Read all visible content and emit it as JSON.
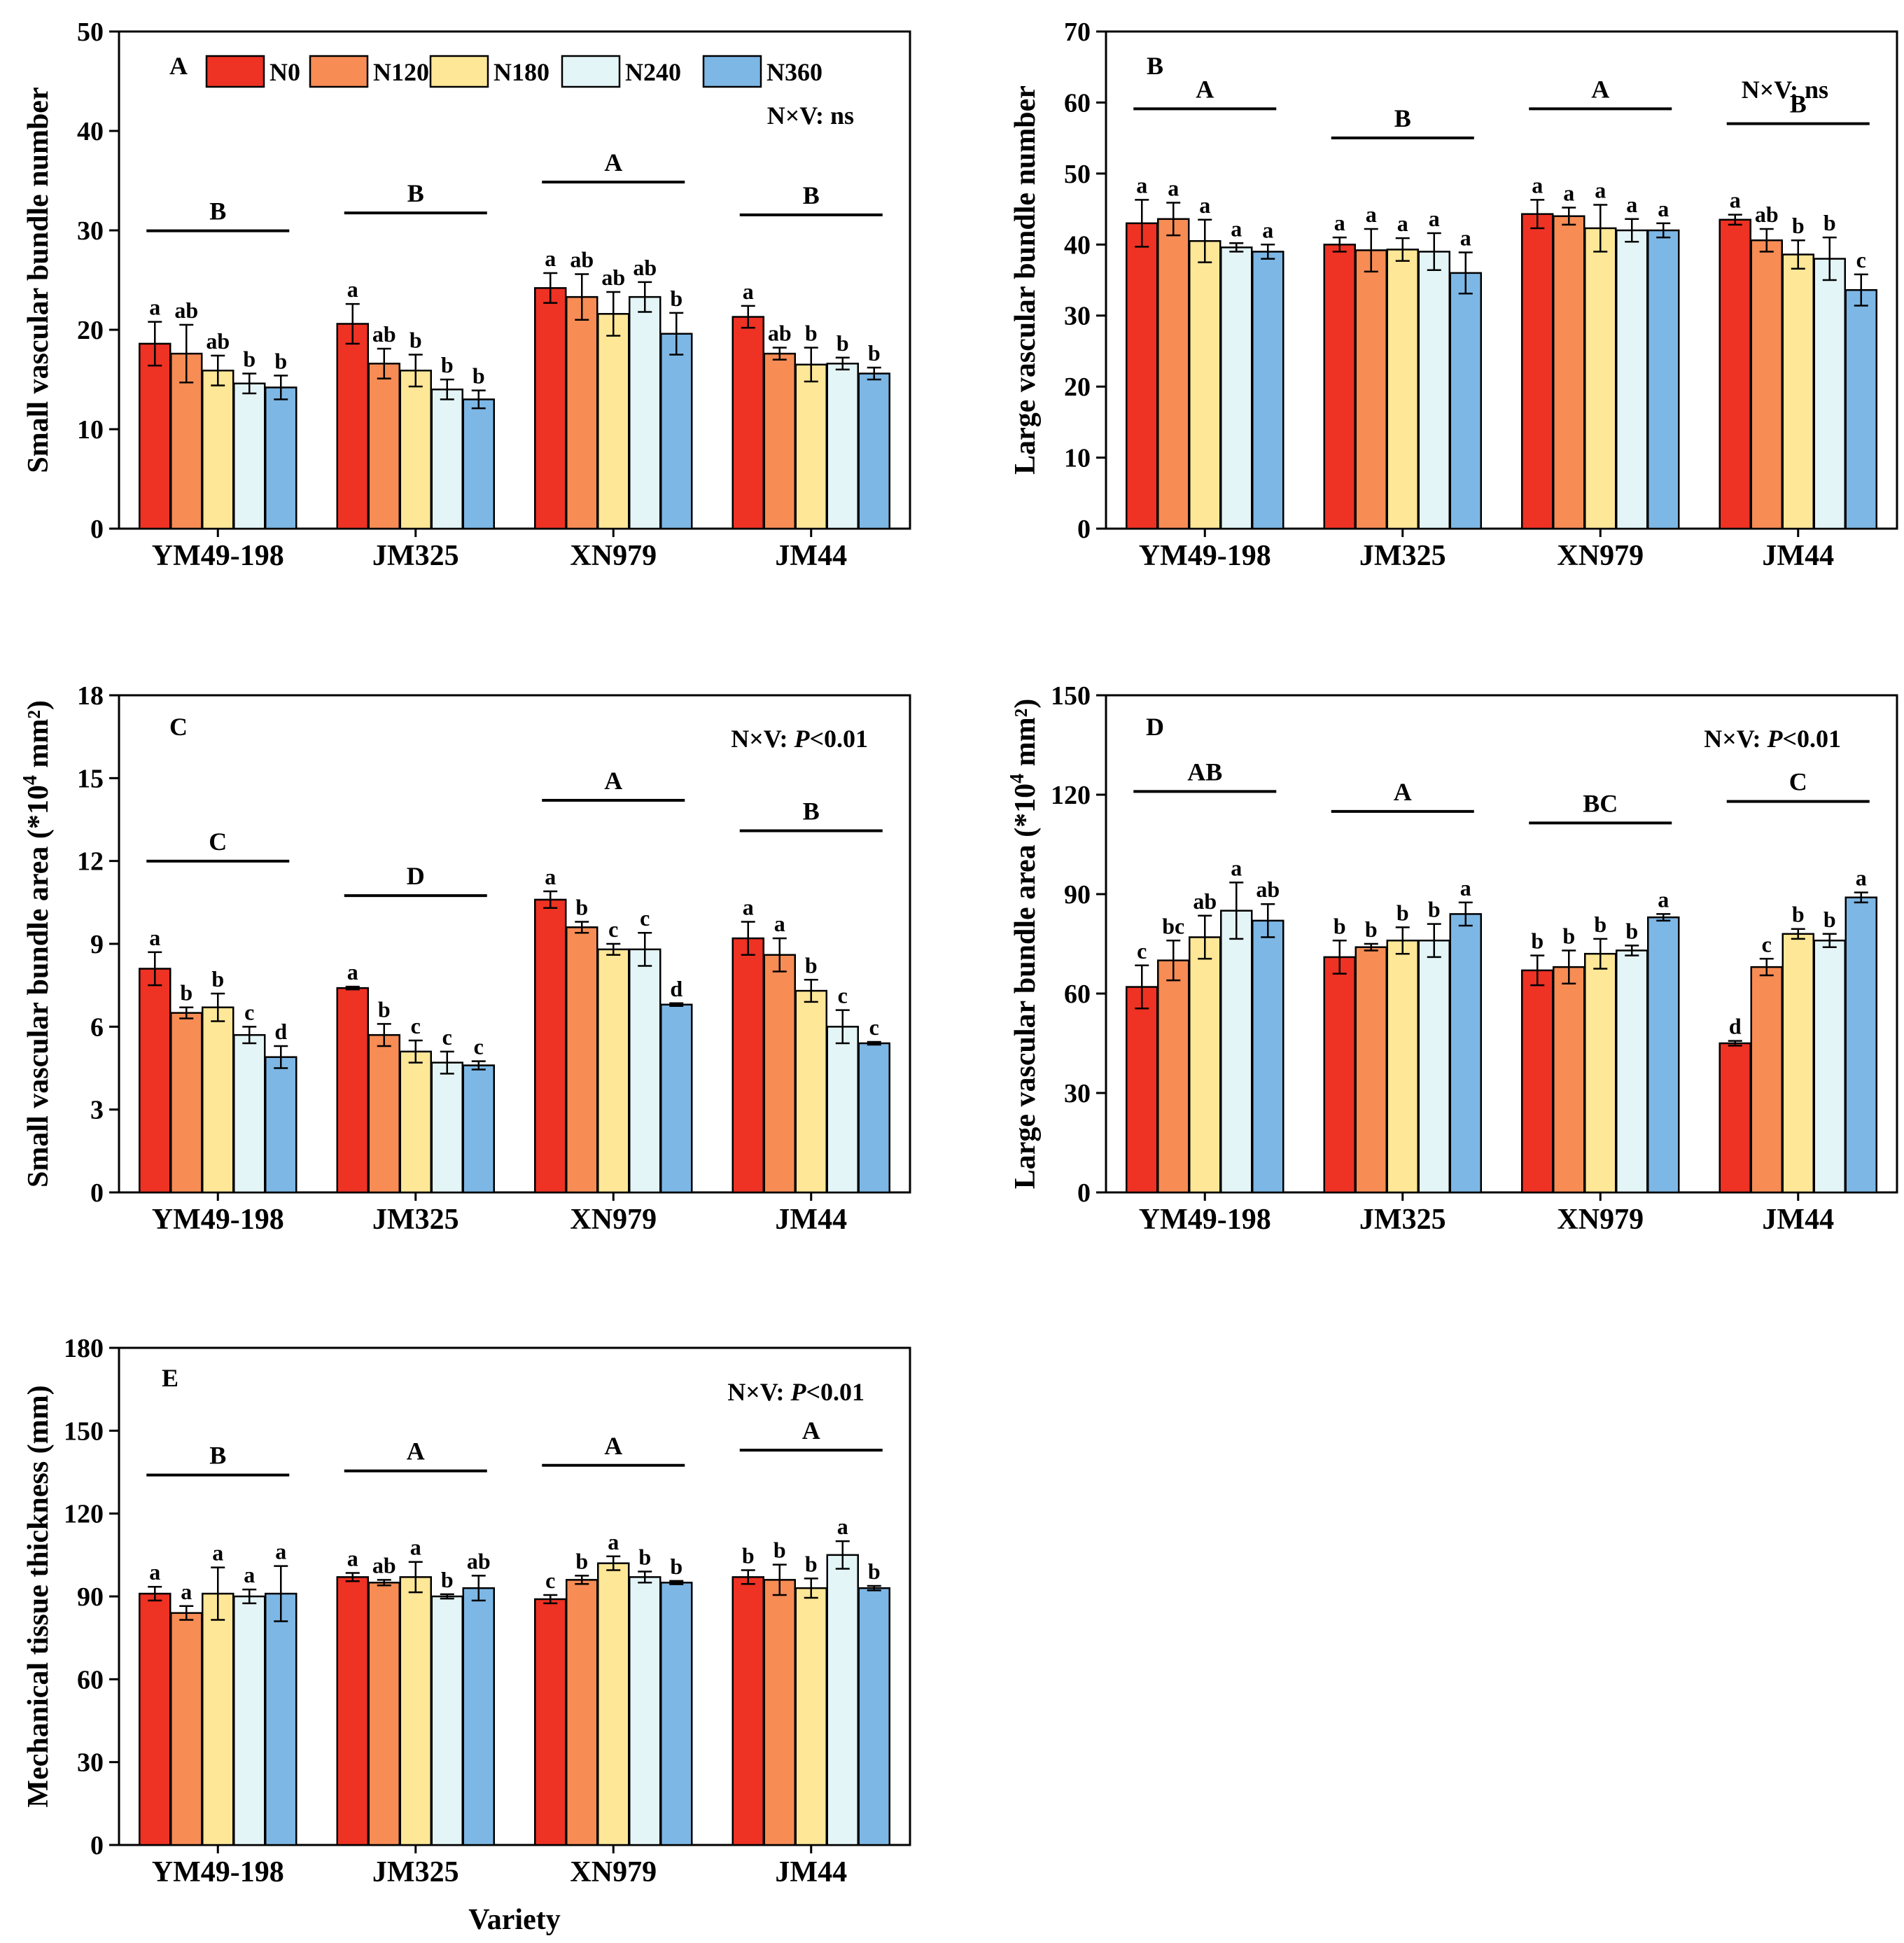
{
  "colors": {
    "N0": "#ee3224",
    "N120": "#f78c55",
    "N180": "#fee797",
    "N240": "#e4f5f7",
    "N360": "#7db7e5"
  },
  "legend": [
    "N0",
    "N120",
    "N180",
    "N240",
    "N360"
  ],
  "xlabel": "Variety",
  "chart_data": [
    {
      "type": "bar",
      "panel": "A",
      "letter": "A",
      "ylabel": "Small vascular bundle number",
      "ylabel_sup": "",
      "ylabel_tail": "",
      "ylim": [
        0,
        50
      ],
      "yticks": [
        0,
        10,
        20,
        30,
        40,
        50
      ],
      "interaction": "N×V: ns",
      "interaction_pre": "N×V: ns",
      "interaction_it": "",
      "interaction_post": "",
      "categories": [
        "YM49-198",
        "JM325",
        "XN979",
        "JM44"
      ],
      "series": [
        {
          "name": "N0",
          "values": [
            18.6,
            20.6,
            24.2,
            21.3
          ],
          "errors": [
            2.2,
            2.0,
            1.5,
            1.1
          ],
          "letters": [
            "a",
            "a",
            "a",
            "a"
          ]
        },
        {
          "name": "N120",
          "values": [
            17.6,
            16.6,
            23.3,
            17.6
          ],
          "errors": [
            2.9,
            1.5,
            2.3,
            0.6
          ],
          "letters": [
            "ab",
            "ab",
            "ab",
            "ab"
          ]
        },
        {
          "name": "N180",
          "values": [
            15.9,
            15.9,
            21.6,
            16.5
          ],
          "errors": [
            1.5,
            1.6,
            2.2,
            1.7
          ],
          "letters": [
            "ab",
            "b",
            "ab",
            "b"
          ]
        },
        {
          "name": "N240",
          "values": [
            14.6,
            14.0,
            23.3,
            16.6
          ],
          "errors": [
            1.0,
            1.0,
            1.5,
            0.6
          ],
          "letters": [
            "b",
            "b",
            "ab",
            "b"
          ]
        },
        {
          "name": "N360",
          "values": [
            14.2,
            13.0,
            19.6,
            15.6
          ],
          "errors": [
            1.2,
            0.9,
            2.1,
            0.6
          ],
          "letters": [
            "b",
            "b",
            "b",
            "b"
          ]
        }
      ],
      "group_letters": [
        "B",
        "B",
        "A",
        "B"
      ]
    },
    {
      "type": "bar",
      "panel": "B",
      "letter": "B",
      "ylabel": "Large vascular bundle number",
      "ylabel_sup": "",
      "ylabel_tail": "",
      "ylim": [
        0,
        70
      ],
      "yticks": [
        0,
        10,
        20,
        30,
        40,
        50,
        60,
        70
      ],
      "interaction": "N×V: ns",
      "interaction_pre": "N×V: ns",
      "interaction_it": "",
      "interaction_post": "",
      "categories": [
        "YM49-198",
        "JM325",
        "XN979",
        "JM44"
      ],
      "series": [
        {
          "name": "N0",
          "values": [
            43.0,
            40.0,
            44.3,
            43.5
          ],
          "errors": [
            3.3,
            1.0,
            2.0,
            0.7
          ],
          "letters": [
            "a",
            "a",
            "a",
            "a"
          ]
        },
        {
          "name": "N120",
          "values": [
            43.6,
            39.2,
            44.0,
            40.6
          ],
          "errors": [
            2.3,
            3.0,
            1.2,
            1.6
          ],
          "letters": [
            "a",
            "a",
            "a",
            "ab"
          ]
        },
        {
          "name": "N180",
          "values": [
            40.5,
            39.3,
            42.3,
            38.6
          ],
          "errors": [
            3.0,
            1.6,
            3.3,
            2.0
          ],
          "letters": [
            "a",
            "a",
            "a",
            "b"
          ]
        },
        {
          "name": "N240",
          "values": [
            39.6,
            39.0,
            42.0,
            38.0
          ],
          "errors": [
            0.6,
            2.6,
            1.6,
            3.0
          ],
          "letters": [
            "a",
            "a",
            "a",
            "b"
          ]
        },
        {
          "name": "N360",
          "values": [
            39.0,
            36.0,
            42.0,
            33.6
          ],
          "errors": [
            1.0,
            2.9,
            1.0,
            2.2
          ],
          "letters": [
            "a",
            "a",
            "a",
            "c"
          ]
        }
      ],
      "group_letters": [
        "A",
        "B",
        "A",
        "B"
      ]
    },
    {
      "type": "bar",
      "panel": "C",
      "letter": "C",
      "ylabel": "Small vascular bundle area (*10",
      "ylabel_sup": "4",
      "ylabel_tail": " mm²)",
      "ylim": [
        0,
        18
      ],
      "yticks": [
        0,
        3,
        6,
        9,
        12,
        15,
        18
      ],
      "interaction": "N×V: P<0.01",
      "interaction_pre": "N×V: ",
      "interaction_it": "P",
      "interaction_post": "<0.01",
      "categories": [
        "YM49-198",
        "JM325",
        "XN979",
        "JM44"
      ],
      "series": [
        {
          "name": "N0",
          "values": [
            8.1,
            7.4,
            10.6,
            9.2
          ],
          "errors": [
            0.6,
            0.05,
            0.3,
            0.6
          ],
          "letters": [
            "a",
            "a",
            "a",
            "a"
          ]
        },
        {
          "name": "N120",
          "values": [
            6.5,
            5.7,
            9.6,
            8.6
          ],
          "errors": [
            0.2,
            0.4,
            0.2,
            0.6
          ],
          "letters": [
            "b",
            "b",
            "b",
            "a"
          ]
        },
        {
          "name": "N180",
          "values": [
            6.7,
            5.1,
            8.8,
            7.3
          ],
          "errors": [
            0.5,
            0.4,
            0.2,
            0.4
          ],
          "letters": [
            "b",
            "c",
            "c",
            "b"
          ]
        },
        {
          "name": "N240",
          "values": [
            5.7,
            4.7,
            8.8,
            6.0
          ],
          "errors": [
            0.3,
            0.4,
            0.6,
            0.6
          ],
          "letters": [
            "c",
            "c",
            "c",
            "c"
          ]
        },
        {
          "name": "N360",
          "values": [
            4.9,
            4.6,
            6.8,
            5.4
          ],
          "errors": [
            0.4,
            0.15,
            0.05,
            0.05
          ],
          "letters": [
            "d",
            "c",
            "d",
            "c"
          ]
        }
      ],
      "group_letters": [
        "C",
        "D",
        "A",
        "B"
      ]
    },
    {
      "type": "bar",
      "panel": "D",
      "letter": "D",
      "ylabel": "Large vascular bundle area (*10",
      "ylabel_sup": "4",
      "ylabel_tail": " mm²)",
      "ylim": [
        0,
        150
      ],
      "yticks": [
        0,
        30,
        60,
        90,
        120,
        150
      ],
      "interaction": "N×V: P<0.01",
      "interaction_pre": "N×V: ",
      "interaction_it": "P",
      "interaction_post": "<0.01",
      "categories": [
        "YM49-198",
        "JM325",
        "XN979",
        "JM44"
      ],
      "series": [
        {
          "name": "N0",
          "values": [
            62,
            71,
            67,
            45
          ],
          "errors": [
            6.5,
            5.0,
            4.5,
            0.7
          ],
          "letters": [
            "c",
            "b",
            "b",
            "d"
          ]
        },
        {
          "name": "N120",
          "values": [
            70,
            74,
            68,
            68
          ],
          "errors": [
            6.0,
            1.0,
            5.0,
            2.5
          ],
          "letters": [
            "bc",
            "b",
            "b",
            "c"
          ]
        },
        {
          "name": "N180",
          "values": [
            77,
            76,
            72,
            78
          ],
          "errors": [
            6.5,
            4.0,
            4.5,
            1.5
          ],
          "letters": [
            "ab",
            "b",
            "b",
            "b"
          ]
        },
        {
          "name": "N240",
          "values": [
            85,
            76,
            73,
            76
          ],
          "errors": [
            8.5,
            5.0,
            1.5,
            2.0
          ],
          "letters": [
            "a",
            "b",
            "b",
            "b"
          ]
        },
        {
          "name": "N360",
          "values": [
            82,
            84,
            83,
            89
          ],
          "errors": [
            5.0,
            3.5,
            1.0,
            1.5
          ],
          "letters": [
            "ab",
            "a",
            "a",
            "a"
          ]
        }
      ],
      "group_letters": [
        "AB",
        "A",
        "BC",
        "C"
      ]
    },
    {
      "type": "bar",
      "panel": "E",
      "letter": "E",
      "ylabel": "Mechanical tissue thickness (mm)",
      "ylabel_sup": "",
      "ylabel_tail": "",
      "ylim": [
        0,
        180
      ],
      "yticks": [
        0,
        30,
        60,
        90,
        120,
        150,
        180
      ],
      "interaction": "N×V: P<0.01",
      "interaction_pre": "N×V: ",
      "interaction_it": "P",
      "interaction_post": "<0.01",
      "categories": [
        "YM49-198",
        "JM325",
        "XN979",
        "JM44"
      ],
      "series": [
        {
          "name": "N0",
          "values": [
            91,
            97,
            89,
            97
          ],
          "errors": [
            2.5,
            1.5,
            1.5,
            2.5
          ],
          "letters": [
            "a",
            "a",
            "c",
            "b"
          ]
        },
        {
          "name": "N120",
          "values": [
            84,
            95,
            96,
            96
          ],
          "errors": [
            2.5,
            1.0,
            1.5,
            5.5
          ],
          "letters": [
            "a",
            "ab",
            "b",
            "b"
          ]
        },
        {
          "name": "N180",
          "values": [
            91,
            97,
            102,
            93
          ],
          "errors": [
            9.5,
            5.5,
            2.5,
            3.5
          ],
          "letters": [
            "a",
            "a",
            "a",
            "b"
          ]
        },
        {
          "name": "N240",
          "values": [
            90,
            90,
            97,
            105
          ],
          "errors": [
            2.5,
            0.8,
            2.0,
            5.0
          ],
          "letters": [
            "a",
            "b",
            "b",
            "a"
          ]
        },
        {
          "name": "N360",
          "values": [
            91,
            93,
            95,
            93
          ],
          "errors": [
            10.0,
            4.5,
            0.6,
            0.8
          ],
          "letters": [
            "a",
            "ab",
            "b",
            "b"
          ]
        }
      ],
      "group_letters": [
        "B",
        "A",
        "A",
        "A"
      ]
    }
  ]
}
